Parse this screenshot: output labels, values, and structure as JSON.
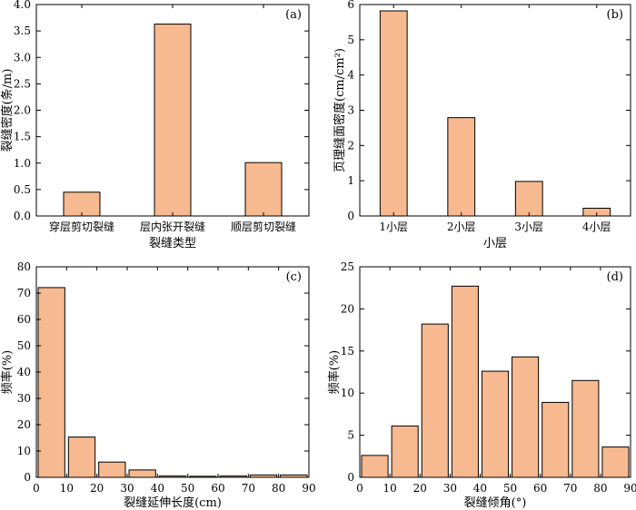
{
  "chart_data": [
    {
      "type": "bar",
      "panel_label": "(a)",
      "xlabel": "裂缝类型",
      "ylabel": "裂缝密度(条/m)",
      "categories": [
        "穿层剪切裂缝",
        "层内张开裂缝",
        "顺层剪切裂缝"
      ],
      "values": [
        0.45,
        3.63,
        1.01
      ],
      "ylim": [
        0,
        4.0
      ],
      "yticks": [
        "0.0",
        "0.5",
        "1.0",
        "1.5",
        "2.0",
        "2.5",
        "3.0",
        "3.5",
        "4.0"
      ],
      "bar_color": "#f7b98f"
    },
    {
      "type": "bar",
      "panel_label": "(b)",
      "xlabel": "小层",
      "ylabel": "页理缝面密度(cm/cm²)",
      "categories": [
        "1小层",
        "2小层",
        "3小层",
        "4小层"
      ],
      "values": [
        5.82,
        2.79,
        0.98,
        0.22
      ],
      "ylim": [
        0,
        6
      ],
      "yticks": [
        "0",
        "1",
        "2",
        "3",
        "4",
        "5",
        "6"
      ],
      "bar_color": "#f7b98f"
    },
    {
      "type": "bar",
      "panel_label": "(c)",
      "xlabel": "裂缝延伸长度(cm)",
      "ylabel": "频率(%)",
      "bins": [
        [
          0,
          10
        ],
        [
          10,
          20
        ],
        [
          20,
          30
        ],
        [
          30,
          40
        ],
        [
          40,
          50
        ],
        [
          50,
          60
        ],
        [
          60,
          70
        ],
        [
          70,
          80
        ],
        [
          80,
          90
        ]
      ],
      "values": [
        72.1,
        15.3,
        5.8,
        2.8,
        0.5,
        0.4,
        0.5,
        0.9,
        0.9
      ],
      "xlim": [
        0,
        90
      ],
      "ylim": [
        0,
        80
      ],
      "xticks": [
        "0",
        "10",
        "20",
        "30",
        "40",
        "50",
        "60",
        "70",
        "80",
        "90"
      ],
      "yticks": [
        "0",
        "10",
        "20",
        "30",
        "40",
        "50",
        "60",
        "70",
        "80"
      ],
      "bar_color": "#f7b98f"
    },
    {
      "type": "bar",
      "panel_label": "(d)",
      "xlabel": "裂缝倾角(°)",
      "ylabel": "频率(%)",
      "bins": [
        [
          0,
          10
        ],
        [
          10,
          20
        ],
        [
          20,
          30
        ],
        [
          30,
          40
        ],
        [
          40,
          50
        ],
        [
          50,
          60
        ],
        [
          60,
          70
        ],
        [
          70,
          80
        ],
        [
          80,
          90
        ]
      ],
      "values": [
        2.6,
        6.1,
        18.2,
        22.7,
        12.6,
        14.3,
        8.9,
        11.5,
        3.6
      ],
      "xlim": [
        0,
        90
      ],
      "ylim": [
        0,
        25
      ],
      "xticks": [
        "0",
        "10",
        "20",
        "30",
        "40",
        "50",
        "60",
        "70",
        "80",
        "90"
      ],
      "yticks": [
        "0",
        "5",
        "10",
        "15",
        "20",
        "25"
      ],
      "bar_color": "#f7b98f"
    }
  ]
}
